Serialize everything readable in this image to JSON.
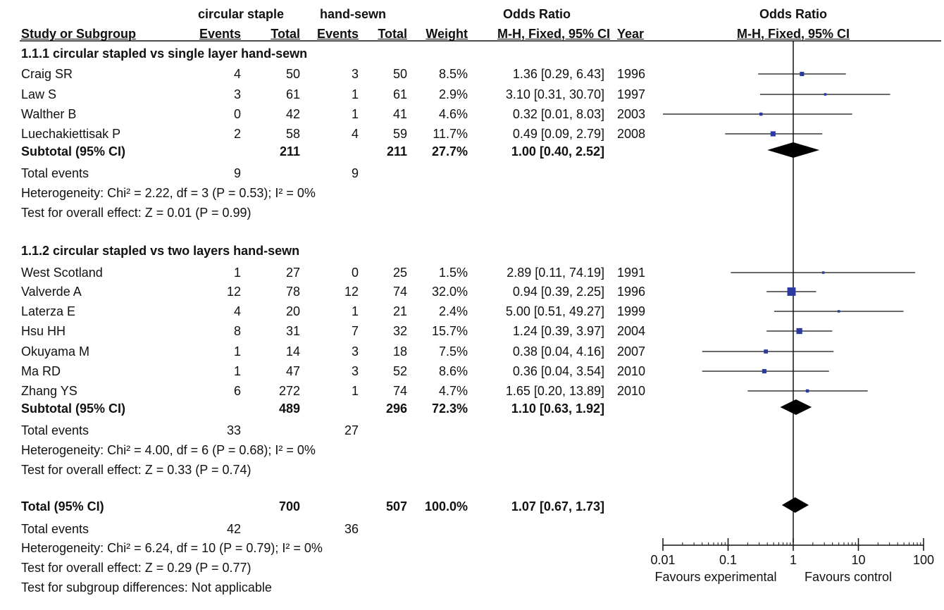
{
  "header": {
    "group_experimental": "circular staple",
    "group_control": "hand-sewn",
    "or_title_table": "Odds Ratio",
    "or_title_plot": "Odds Ratio",
    "col_study": "Study or Subgroup",
    "col_events1": "Events",
    "col_total1": "Total",
    "col_events2": "Events",
    "col_total2": "Total",
    "col_weight": "Weight",
    "col_ci": "M-H, Fixed, 95% CI",
    "col_year": "Year",
    "plot_subtitle": "M-H, Fixed, 95% CI"
  },
  "subgroups": [
    {
      "title": "1.1.1 circular stapled vs single layer hand-sewn",
      "studies": [
        {
          "name": "Craig SR",
          "e1": "4",
          "n1": "50",
          "e2": "3",
          "n2": "50",
          "weight": "8.5%",
          "ci": "1.36 [0.29, 6.43]",
          "year": "1996"
        },
        {
          "name": "Law S",
          "e1": "3",
          "n1": "61",
          "e2": "1",
          "n2": "61",
          "weight": "2.9%",
          "ci": "3.10 [0.31, 30.70]",
          "year": "1997"
        },
        {
          "name": "Walther B",
          "e1": "0",
          "n1": "42",
          "e2": "1",
          "n2": "41",
          "weight": "4.6%",
          "ci": "0.32 [0.01, 8.03]",
          "year": "2003"
        },
        {
          "name": "Luechakiettisak P",
          "e1": "2",
          "n1": "58",
          "e2": "4",
          "n2": "59",
          "weight": "11.7%",
          "ci": "0.49 [0.09, 2.79]",
          "year": "2008"
        }
      ],
      "subtotal": {
        "label": "Subtotal (95% CI)",
        "n1": "211",
        "n2": "211",
        "weight": "27.7%",
        "ci": "1.00 [0.40, 2.52]"
      },
      "total_events": {
        "label": "Total events",
        "e1": "9",
        "e2": "9"
      },
      "heterogeneity": "Heterogeneity: Chi² = 2.22, df = 3 (P = 0.53); I² = 0%",
      "overall": "Test for overall effect: Z = 0.01 (P = 0.99)"
    },
    {
      "title": "1.1.2 circular stapled vs two layers hand-sewn",
      "studies": [
        {
          "name": "West Scotland",
          "e1": "1",
          "n1": "27",
          "e2": "0",
          "n2": "25",
          "weight": "1.5%",
          "ci": "2.89 [0.11, 74.19]",
          "year": "1991"
        },
        {
          "name": "Valverde A",
          "e1": "12",
          "n1": "78",
          "e2": "12",
          "n2": "74",
          "weight": "32.0%",
          "ci": "0.94 [0.39, 2.25]",
          "year": "1996"
        },
        {
          "name": "Laterza E",
          "e1": "4",
          "n1": "20",
          "e2": "1",
          "n2": "21",
          "weight": "2.4%",
          "ci": "5.00 [0.51, 49.27]",
          "year": "1999"
        },
        {
          "name": "Hsu HH",
          "e1": "8",
          "n1": "31",
          "e2": "7",
          "n2": "32",
          "weight": "15.7%",
          "ci": "1.24 [0.39, 3.97]",
          "year": "2004"
        },
        {
          "name": "Okuyama M",
          "e1": "1",
          "n1": "14",
          "e2": "3",
          "n2": "18",
          "weight": "7.5%",
          "ci": "0.38 [0.04, 4.16]",
          "year": "2007"
        },
        {
          "name": "Ma RD",
          "e1": "1",
          "n1": "47",
          "e2": "3",
          "n2": "52",
          "weight": "8.6%",
          "ci": "0.36 [0.04, 3.54]",
          "year": "2010"
        },
        {
          "name": "Zhang YS",
          "e1": "6",
          "n1": "272",
          "e2": "1",
          "n2": "74",
          "weight": "4.7%",
          "ci": "1.65 [0.20, 13.89]",
          "year": "2010"
        }
      ],
      "subtotal": {
        "label": "Subtotal (95% CI)",
        "n1": "489",
        "n2": "296",
        "weight": "72.3%",
        "ci": "1.10 [0.63, 1.92]"
      },
      "total_events": {
        "label": "Total events",
        "e1": "33",
        "e2": "27"
      },
      "heterogeneity": "Heterogeneity: Chi² = 4.00, df = 6 (P = 0.68); I² = 0%",
      "overall": "Test for overall effect: Z = 0.33 (P = 0.74)"
    }
  ],
  "total": {
    "label": "Total (95% CI)",
    "n1": "700",
    "n2": "507",
    "weight": "100.0%",
    "ci": "1.07 [0.67, 1.73]",
    "events_label": "Total events",
    "e1": "42",
    "e2": "36",
    "heterogeneity": "Heterogeneity: Chi² = 6.24, df = 10 (P = 0.79); I² = 0%",
    "overall": "Test for overall effect: Z = 0.29 (P = 0.77)",
    "subgroup_diff": "Test for subgroup differences: Not applicable"
  },
  "axis": {
    "favours_left": "Favours experimental",
    "favours_right": "Favours control"
  },
  "chart_data": {
    "type": "forest",
    "scale": "log",
    "xlim": [
      0.01,
      100
    ],
    "ticks": [
      0.01,
      0.1,
      1,
      10,
      100
    ],
    "tick_labels": [
      "0.01",
      "0.1",
      "1",
      "10",
      "100"
    ],
    "null_line": 1,
    "marker_color": "#2b3a9e",
    "studies": [
      {
        "name": "Craig SR",
        "or": 1.36,
        "lo": 0.29,
        "hi": 6.43,
        "weight": 8.5
      },
      {
        "name": "Law S",
        "or": 3.1,
        "lo": 0.31,
        "hi": 30.7,
        "weight": 2.9
      },
      {
        "name": "Walther B",
        "or": 0.32,
        "lo": 0.01,
        "hi": 8.03,
        "weight": 4.6
      },
      {
        "name": "Luechakiettisak P",
        "or": 0.49,
        "lo": 0.09,
        "hi": 2.79,
        "weight": 11.7
      },
      {
        "name": "West Scotland",
        "or": 2.89,
        "lo": 0.11,
        "hi": 74.19,
        "weight": 1.5
      },
      {
        "name": "Valverde A",
        "or": 0.94,
        "lo": 0.39,
        "hi": 2.25,
        "weight": 32.0
      },
      {
        "name": "Laterza E",
        "or": 5.0,
        "lo": 0.51,
        "hi": 49.27,
        "weight": 2.4
      },
      {
        "name": "Hsu HH",
        "or": 1.24,
        "lo": 0.39,
        "hi": 3.97,
        "weight": 15.7
      },
      {
        "name": "Okuyama M",
        "or": 0.38,
        "lo": 0.04,
        "hi": 4.16,
        "weight": 7.5
      },
      {
        "name": "Ma RD",
        "or": 0.36,
        "lo": 0.04,
        "hi": 3.54,
        "weight": 8.6
      },
      {
        "name": "Zhang YS",
        "or": 1.65,
        "lo": 0.2,
        "hi": 13.89,
        "weight": 4.7
      }
    ],
    "diamonds": [
      {
        "name": "Subtotal 1.1.1",
        "or": 1.0,
        "lo": 0.4,
        "hi": 2.52
      },
      {
        "name": "Subtotal 1.1.2",
        "or": 1.1,
        "lo": 0.63,
        "hi": 1.92
      },
      {
        "name": "Total",
        "or": 1.07,
        "lo": 0.67,
        "hi": 1.73
      }
    ]
  }
}
